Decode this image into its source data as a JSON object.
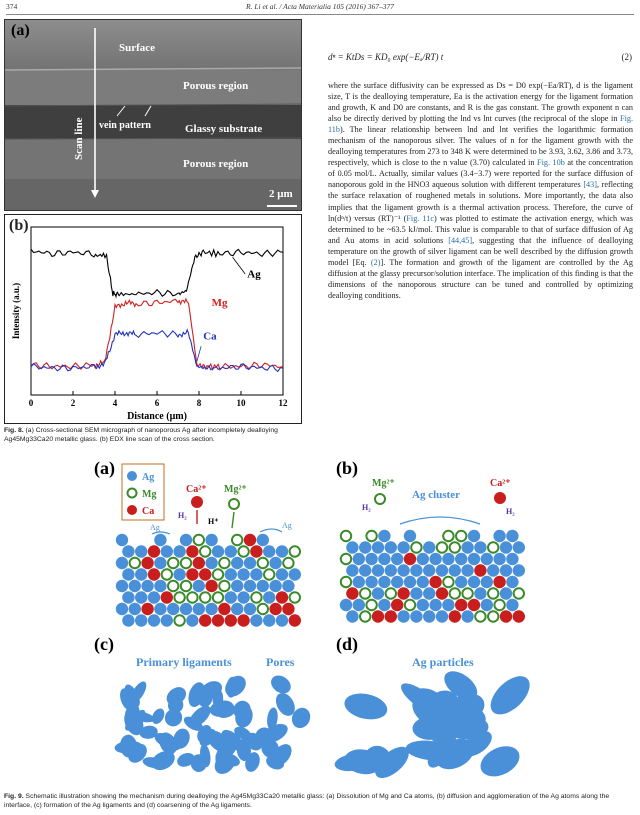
{
  "header": {
    "page_number": "374",
    "journal": "R. Li et al. / Acta Materialia 105 (2016) 367–377"
  },
  "fig8": {
    "panel_a_label": "(a)",
    "panel_b_label": "(b)",
    "sem_labels": {
      "surface": "Surface",
      "porous_top": "Porous region",
      "vein": "vein pattern",
      "glassy": "Glassy substrate",
      "porous_bottom": "Porous region",
      "scan_line": "Scan line",
      "scale_bar": "2 μm"
    },
    "chart_data": {
      "type": "line",
      "xlabel": "Distance (μm)",
      "ylabel": "Intensity (a.u.)",
      "xlim": [
        0,
        12
      ],
      "xticks": [
        "0",
        "2",
        "4",
        "6",
        "8",
        "10",
        "12"
      ],
      "series": [
        {
          "name": "Ag",
          "color": "#000000",
          "x": [
            0,
            1,
            2,
            3,
            3.6,
            3.9,
            4.2,
            5,
            6,
            7,
            7.4,
            7.8,
            8.2,
            9,
            10,
            11,
            12
          ],
          "y": [
            0.86,
            0.84,
            0.85,
            0.84,
            0.82,
            0.6,
            0.6,
            0.6,
            0.61,
            0.6,
            0.62,
            0.82,
            0.85,
            0.84,
            0.85,
            0.84,
            0.85
          ]
        },
        {
          "name": "Mg",
          "color": "#d42020",
          "x": [
            0,
            1,
            2,
            3,
            3.5,
            4.0,
            4.5,
            5,
            6,
            7,
            7.5,
            7.9,
            8.3,
            9,
            10,
            11,
            12
          ],
          "y": [
            0.18,
            0.17,
            0.17,
            0.18,
            0.19,
            0.52,
            0.55,
            0.54,
            0.55,
            0.56,
            0.55,
            0.18,
            0.17,
            0.17,
            0.17,
            0.18,
            0.17
          ]
        },
        {
          "name": "Ca",
          "color": "#2233bb",
          "x": [
            0,
            1,
            2,
            3,
            3.5,
            4.0,
            4.5,
            5,
            6,
            7,
            7.5,
            7.9,
            8.3,
            9,
            10,
            11,
            12
          ],
          "y": [
            0.17,
            0.16,
            0.16,
            0.17,
            0.18,
            0.36,
            0.37,
            0.36,
            0.37,
            0.36,
            0.37,
            0.17,
            0.16,
            0.16,
            0.17,
            0.16,
            0.16
          ]
        }
      ]
    },
    "caption_label": "Fig. 8.",
    "caption_text": "(a) Cross-sectional SEM micrograph of nanoporous Ag after incompletely dealloying Ag45Mg33Ca20 metallic glass. (b) EDX line scan of the cross section."
  },
  "equation": {
    "lhs": "dⁿ = KtDs = KD₀ exp(−Eₐ/RT) t",
    "number": "(2)"
  },
  "text": {
    "p1": "where the surface diffusivity can be expressed as Ds = D0 exp(−Ea/RT), d is the ligament size, T is the dealloying temperature, Ea is the activation energy for the ligament formation and growth, K and D0 are constants, and R is the gas constant. The growth exponent n can also be directly derived by plotting the lnd vs lnt curves (the reciprocal of the slope in ",
    "ref_fig11b": "Fig. 11b",
    "p2": "). The linear relationship between lnd and lnt verifies the logarithmic formation mechanism of the nanoporous silver. The values of n for the ligament growth with the dealloying temperatures from 273 to 348 K were determined to be 3.93, 3.62, 3.86 and 3.73, respectively, which is close to the n value (3.70) calculated in ",
    "ref_fig10b": "Fig. 10b",
    "p3": " at the concentration of 0.05 mol/L. Actually, similar values (3.4−3.7) were reported for the surface diffusion of nanoporous gold in the HNO3 aqueous solution with different temperatures ",
    "ref_43": "[43]",
    "p4": ", reflecting the surface relaxation of roughened metals in solutions. More importantly, the data also implies that the ligament growth is a thermal activation process. Therefore, the curve of ln(dⁿ/t) versus (RT)⁻¹ (",
    "ref_fig11c": "Fig. 11c",
    "p5": ") was plotted to estimate the activation energy, which was determined to be ~63.5 kJ/mol. This value is comparable to that of surface diffusion of Ag and Au atoms in acid solutions ",
    "ref_4445": "[44,45]",
    "p6": ", suggesting that the influence of dealloying temperature on the growth of silver ligament can be well described by the diffusion growth model [Eq. ",
    "ref_eq2": "(2)",
    "p7": "]. The formation and growth of the ligament are controlled by the Ag diffusion at the glassy precursor/solution interface. The implication of this finding is that the dimensions of the nanoporous structure can be tuned and controlled by optimizing dealloying conditions."
  },
  "fig9": {
    "panel_a": "(a)",
    "panel_b": "(b)",
    "panel_c": "(c)",
    "panel_d": "(d)",
    "legend": {
      "ag": "Ag",
      "mg": "Mg",
      "ca": "Ca"
    },
    "labels": {
      "ca2": "Ca²⁺",
      "mg2": "Mg²⁺",
      "h2": "H₂",
      "hplus": "H⁺",
      "ag": "Ag",
      "ag_cluster": "Ag cluster",
      "primary_ligaments": "Primary ligaments",
      "pores": "Pores",
      "ag_particles": "Ag particles"
    },
    "colors": {
      "ag": "#4a90d9",
      "mg": "#3a8a2a",
      "ca": "#c81e1e"
    },
    "caption_label": "Fig. 9.",
    "caption_text": "Schematic illustration showing the mechanism during dealloying the Ag45Mg33Ca20 metallic glass: (a) Dissolution of Mg and Ca atoms, (b) diffusion and agglomeration of the Ag atoms along the interface, (c) formation of the Ag ligaments and (d) coarsening of the Ag ligaments."
  }
}
